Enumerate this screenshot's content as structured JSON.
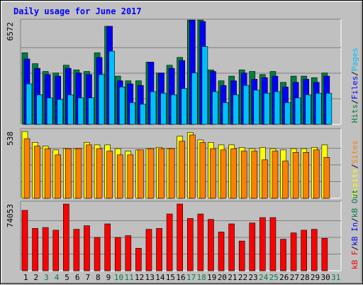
{
  "chart_data": {
    "type": "bar",
    "title": "Daily usage for June 2017",
    "colors": {
      "hits": "#008040",
      "files": "#0000ff",
      "pages": "#00c0ff",
      "visits": "#ffff00",
      "sites": "#ff8000",
      "kbytes": "#ff0000",
      "weekend_label": "#008040",
      "weekday_label": "#000000",
      "title": "#0000ff",
      "background": "#c0c0c0"
    },
    "days": [
      "1",
      "2",
      "3",
      "4",
      "5",
      "6",
      "7",
      "8",
      "9",
      "10",
      "11",
      "12",
      "13",
      "14",
      "15",
      "16",
      "17",
      "18",
      "19",
      "20",
      "21",
      "22",
      "23",
      "24",
      "25",
      "26",
      "27",
      "28",
      "29",
      "30",
      "31"
    ],
    "weekend_days": [
      "3",
      "4",
      "10",
      "11",
      "17",
      "18",
      "24",
      "25",
      "31"
    ],
    "panels": [
      {
        "id": "hits-files-pages",
        "max_label": "6572",
        "ymax": 6572,
        "side_label": [
          {
            "text": "Hits",
            "color": "#008040"
          },
          {
            "text": "/",
            "color": "#000000"
          },
          {
            "text": "Files",
            "color": "#0000ff"
          },
          {
            "text": "/",
            "color": "#000000"
          },
          {
            "text": "Pages",
            "color": "#00c0ff"
          }
        ],
        "series": [
          {
            "name": "Hits",
            "color": "#008040",
            "values": [
              4600,
              3900,
              3400,
              3300,
              3800,
              3500,
              3400,
              4600,
              6300,
              3100,
              2800,
              2800,
              4000,
              3300,
              3800,
              4300,
              6700,
              6700,
              3500,
              2800,
              3100,
              3500,
              3400,
              3200,
              3400,
              2700,
              3100,
              3100,
              3000,
              3300,
              0
            ]
          },
          {
            "name": "Files",
            "color": "#0000ff",
            "values": [
              4200,
              3600,
              3200,
              3100,
              3600,
              3300,
              3200,
              4300,
              6300,
              2800,
              2600,
              2500,
              4000,
              3300,
              3600,
              4100,
              6700,
              6600,
              3400,
              2500,
              2800,
              3300,
              2900,
              3000,
              3100,
              2400,
              2700,
              2900,
              2700,
              3100,
              0
            ]
          },
          {
            "name": "Pages",
            "color": "#00c0ff",
            "values": [
              2600,
              1900,
              1700,
              1600,
              1900,
              1700,
              1700,
              3200,
              4700,
              2400,
              1400,
              1300,
              2100,
              2000,
              1900,
              2300,
              3300,
              5000,
              2100,
              1400,
              1900,
              2500,
              2200,
              2000,
              2100,
              1400,
              1700,
              1900,
              2000,
              2000,
              0
            ]
          }
        ]
      },
      {
        "id": "visits-sites",
        "max_label": "538",
        "ymax": 538,
        "side_label": [
          {
            "text": "Visits",
            "color": "#ffff00"
          },
          {
            "text": "/",
            "color": "#000000"
          },
          {
            "text": "Sites",
            "color": "#ff8000"
          }
        ],
        "series": [
          {
            "name": "Visits",
            "color": "#ffff00",
            "values": [
              538,
              450,
              420,
              390,
              400,
              400,
              450,
              430,
              430,
              400,
              380,
              390,
              400,
              410,
              400,
              500,
              530,
              470,
              450,
              430,
              430,
              410,
              400,
              410,
              400,
              390,
              400,
              400,
              410,
              430,
              0
            ]
          },
          {
            "name": "Sites",
            "color": "#ff8000",
            "values": [
              480,
              420,
              400,
              350,
              400,
              400,
              430,
              400,
              380,
              350,
              350,
              390,
              400,
              400,
              400,
              460,
              510,
              450,
              400,
              390,
              400,
              380,
              380,
              310,
              380,
              300,
              370,
              370,
              390,
              330,
              0
            ]
          }
        ]
      },
      {
        "id": "kbytes",
        "max_label": "74053",
        "ymax": 74053,
        "side_label": [
          {
            "text": "kB F",
            "color": "#ff0000"
          },
          {
            "text": "/",
            "color": "#000000"
          },
          {
            "text": "kB In",
            "color": "#0000ff"
          },
          {
            "text": "/",
            "color": "#000000"
          },
          {
            "text": "kB Out",
            "color": "#008040"
          }
        ],
        "series": [
          {
            "name": "kB F",
            "color": "#ff0000",
            "values": [
              67000,
              47000,
              48000,
              45000,
              74000,
              46000,
              50000,
              37000,
              52000,
              37000,
              39000,
              25000,
              46000,
              47000,
              63000,
              74053,
              58000,
              63000,
              57000,
              43000,
              52000,
              33000,
              53000,
              59000,
              59000,
              35000,
              42000,
              45000,
              46000,
              36000,
              0
            ]
          }
        ]
      }
    ]
  }
}
